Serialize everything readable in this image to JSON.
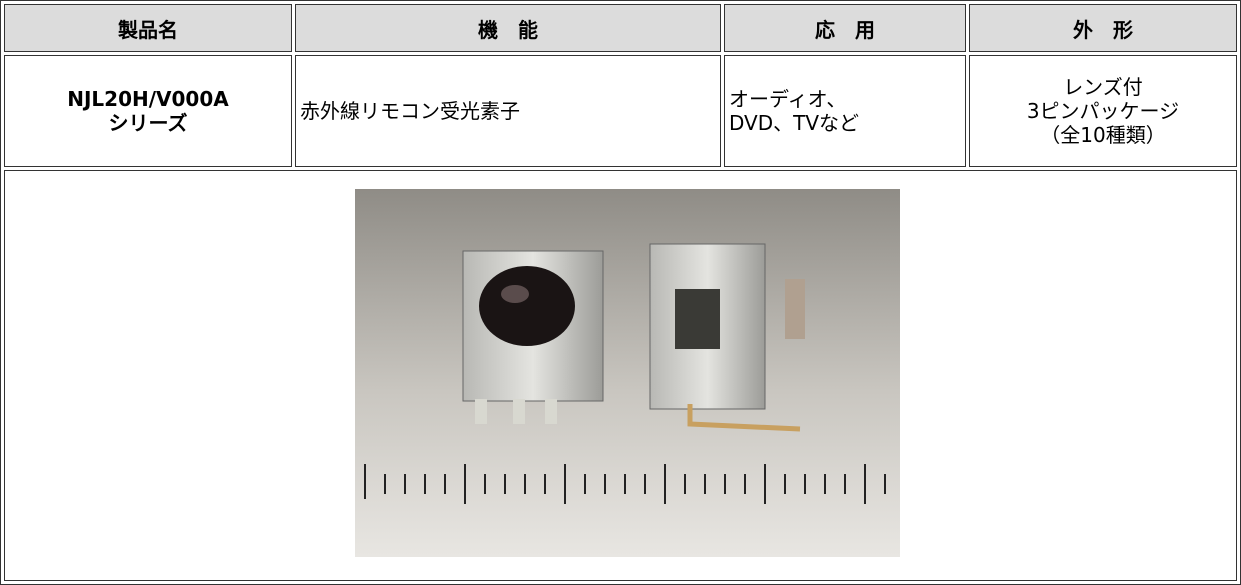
{
  "table": {
    "headers": [
      "製品名",
      "機　能",
      "応　用",
      "外　形"
    ],
    "rows": [
      [
        [
          "NJL20H/V000A",
          "シリーズ"
        ],
        [
          "赤外線リモコン受光素子"
        ],
        [
          "オーディオ、",
          "DVD、TVなど"
        ],
        [
          "レンズ付",
          "3ピンパッケージ",
          "（全10種類）"
        ]
      ]
    ]
  }
}
